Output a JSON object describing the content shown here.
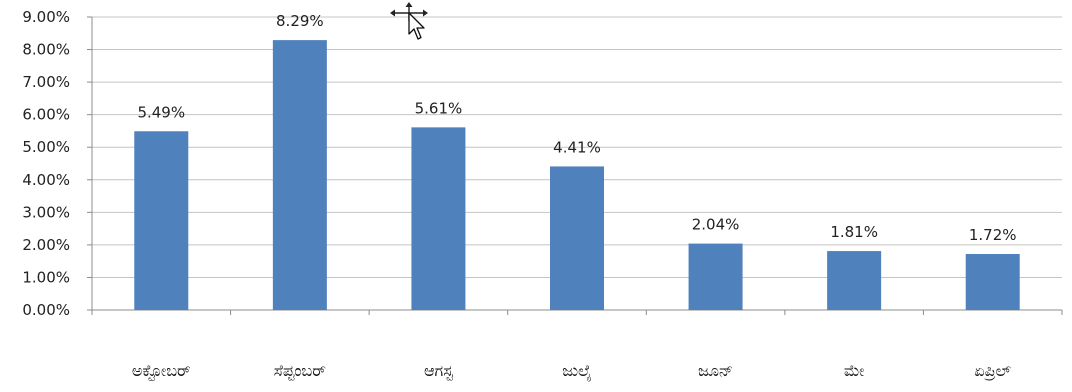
{
  "chart_data": {
    "type": "bar",
    "title": "",
    "xlabel": "",
    "ylabel": "",
    "categories": [
      "ಅಕ್ಟೋಬರ್",
      "ಸೆಪ್ಟಂಬರ್",
      "ಆಗಸ್ಟ",
      "ಜುಲೈ",
      "ಜೂನ್",
      "ಮೇ",
      "ಏಪ್ರಿಲ್"
    ],
    "values": [
      5.49,
      8.29,
      5.61,
      4.41,
      2.04,
      1.81,
      1.72
    ],
    "data_labels": [
      "5.49%",
      "8.29%",
      "5.61%",
      "4.41%",
      "2.04%",
      "1.81%",
      "1.72%"
    ],
    "ylim": [
      0,
      9
    ],
    "yticks": [
      0,
      1,
      2,
      3,
      4,
      5,
      6,
      7,
      8,
      9
    ],
    "ytick_labels": [
      "0.00%",
      "1.00%",
      "2.00%",
      "3.00%",
      "4.00%",
      "5.00%",
      "6.00%",
      "7.00%",
      "8.00%",
      "9.00%"
    ],
    "grid": true,
    "legend": "none",
    "bar_color": "#4f81bd"
  },
  "cursor": {
    "icon": "move-cursor-icon"
  }
}
